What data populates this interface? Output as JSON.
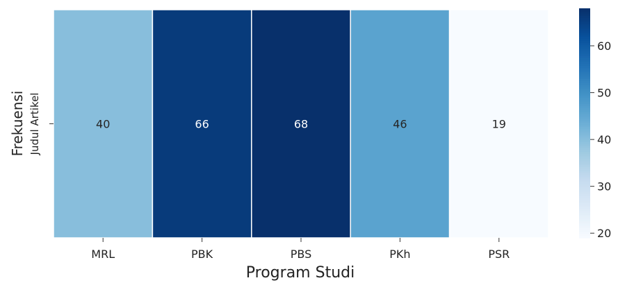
{
  "chart_data": {
    "type": "heatmap",
    "title": "",
    "xlabel": "Program Studi",
    "ylabel": "Frekuensi",
    "row_labels": [
      "Judul Artikel"
    ],
    "categories": [
      "MRL",
      "PBK",
      "PBS",
      "PKh",
      "PSR"
    ],
    "values": [
      [
        40,
        66,
        68,
        46,
        19
      ]
    ],
    "colormap": "Blues",
    "colorbar": {
      "min": 19,
      "max": 68,
      "ticks": [
        20,
        30,
        40,
        50,
        60
      ]
    },
    "grid": false,
    "annotations": true
  }
}
